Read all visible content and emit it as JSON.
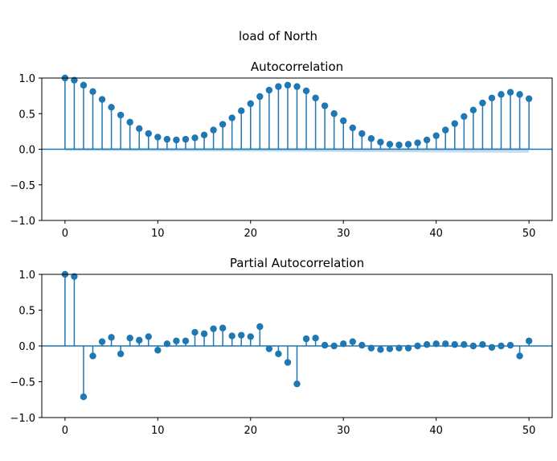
{
  "figure": {
    "suptitle": "load of North"
  },
  "chart_data": [
    {
      "type": "stem",
      "title": "Autocorrelation",
      "xlim": [
        -2.5,
        52.5
      ],
      "ylim": [
        -1.0,
        1.0
      ],
      "xticks": [
        0,
        10,
        20,
        30,
        40,
        50
      ],
      "xtick_labels": [
        "0",
        "10",
        "20",
        "30",
        "40",
        "50"
      ],
      "yticks": [
        -1.0,
        -0.5,
        0.0,
        0.5,
        1.0
      ],
      "ytick_labels": [
        "−1.0",
        "−0.5",
        "0.0",
        "0.5",
        "1.0"
      ],
      "lags": [
        0,
        1,
        2,
        3,
        4,
        5,
        6,
        7,
        8,
        9,
        10,
        11,
        12,
        13,
        14,
        15,
        16,
        17,
        18,
        19,
        20,
        21,
        22,
        23,
        24,
        25,
        26,
        27,
        28,
        29,
        30,
        31,
        32,
        33,
        34,
        35,
        36,
        37,
        38,
        39,
        40,
        41,
        42,
        43,
        44,
        45,
        46,
        47,
        48,
        49,
        50
      ],
      "values": [
        1.0,
        0.97,
        0.9,
        0.81,
        0.7,
        0.59,
        0.48,
        0.38,
        0.29,
        0.22,
        0.17,
        0.14,
        0.13,
        0.14,
        0.16,
        0.2,
        0.27,
        0.35,
        0.44,
        0.54,
        0.64,
        0.74,
        0.83,
        0.88,
        0.9,
        0.88,
        0.82,
        0.72,
        0.61,
        0.5,
        0.4,
        0.3,
        0.22,
        0.15,
        0.1,
        0.07,
        0.06,
        0.07,
        0.09,
        0.13,
        0.19,
        0.27,
        0.36,
        0.46,
        0.55,
        0.65,
        0.72,
        0.77,
        0.8,
        0.77,
        0.71
      ],
      "confidence_band": {
        "lags": [
          0,
          50
        ],
        "upper": [
          0.02,
          0.02
        ],
        "lower": [
          -0.02,
          -0.05
        ]
      },
      "color": "#1f77b4",
      "grid": false
    },
    {
      "type": "stem",
      "title": "Partial Autocorrelation",
      "xlim": [
        -2.5,
        52.5
      ],
      "ylim": [
        -1.0,
        1.0
      ],
      "xticks": [
        0,
        10,
        20,
        30,
        40,
        50
      ],
      "xtick_labels": [
        "0",
        "10",
        "20",
        "30",
        "40",
        "50"
      ],
      "yticks": [
        -1.0,
        -0.5,
        0.0,
        0.5,
        1.0
      ],
      "ytick_labels": [
        "−1.0",
        "−0.5",
        "0.0",
        "0.5",
        "1.0"
      ],
      "lags": [
        0,
        1,
        2,
        3,
        4,
        5,
        6,
        7,
        8,
        9,
        10,
        11,
        12,
        13,
        14,
        15,
        16,
        17,
        18,
        19,
        20,
        21,
        22,
        23,
        24,
        25,
        26,
        27,
        28,
        29,
        30,
        31,
        32,
        33,
        34,
        35,
        36,
        37,
        38,
        39,
        40,
        41,
        42,
        43,
        44,
        45,
        46,
        47,
        48,
        49,
        50
      ],
      "values": [
        1.0,
        0.97,
        -0.71,
        -0.14,
        0.06,
        0.12,
        -0.11,
        0.11,
        0.08,
        0.13,
        -0.06,
        0.03,
        0.07,
        0.07,
        0.19,
        0.17,
        0.24,
        0.25,
        0.14,
        0.15,
        0.13,
        0.27,
        -0.04,
        -0.11,
        -0.23,
        -0.53,
        0.1,
        0.11,
        0.01,
        0.0,
        0.03,
        0.06,
        0.01,
        -0.03,
        -0.05,
        -0.04,
        -0.03,
        -0.03,
        0.0,
        0.02,
        0.03,
        0.03,
        0.02,
        0.02,
        0.0,
        0.02,
        -0.02,
        0.0,
        0.01,
        -0.14,
        0.07
      ],
      "color": "#1f77b4",
      "grid": false
    }
  ]
}
